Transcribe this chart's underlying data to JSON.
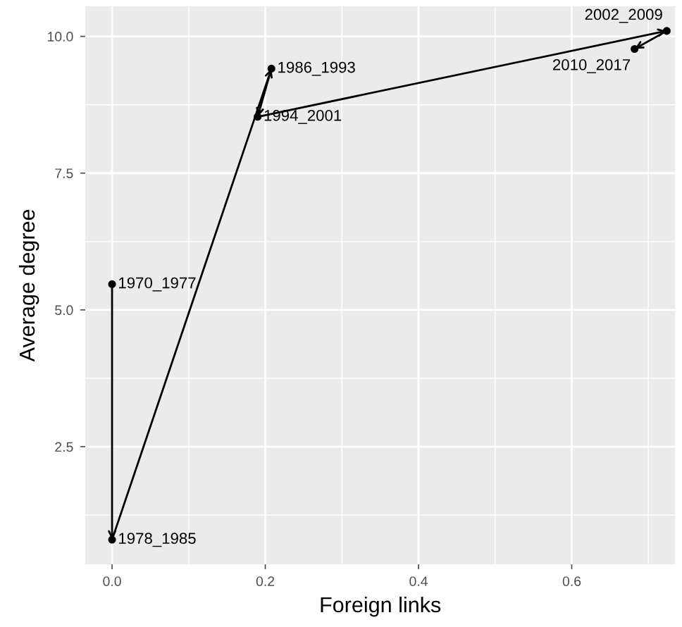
{
  "chart_data": {
    "type": "line",
    "xlabel": "Foreign links",
    "ylabel": "Average degree",
    "x": [
      0,
      0,
      0.208,
      0.19,
      0.724,
      0.682
    ],
    "series": [
      {
        "color": "#000000",
        "values": [
          5.47,
          0.8,
          9.41,
          8.53,
          10.1,
          9.77
        ]
      }
    ],
    "marker": "circle",
    "line_style": "solid",
    "grid": true,
    "xlim": [
      -0.035,
      0.735
    ],
    "ylim": [
      0.35,
      10.55
    ],
    "xticks": [
      {
        "value": 0,
        "label": "0.0"
      },
      0.2,
      0.4,
      0.6
    ],
    "yticks": [
      2.5,
      {
        "value": 5,
        "label": "5.0"
      },
      7.5,
      {
        "value": 10,
        "label": "10.0"
      }
    ],
    "annotations": [
      {
        "text": "1970_1977",
        "x": 0,
        "y": 5.47
      },
      {
        "text": "1978_1985",
        "x": 0,
        "y": 0.8
      },
      {
        "text": "1986_1993",
        "x": 0.208,
        "y": 9.41
      },
      {
        "text": "1994_2001",
        "x": 0.19,
        "y": 8.53
      },
      {
        "text": "2002_2009",
        "x": 0.724,
        "y": 10.1
      },
      {
        "text": "2010_2017",
        "x": 0.682,
        "y": 9.77
      }
    ]
  }
}
